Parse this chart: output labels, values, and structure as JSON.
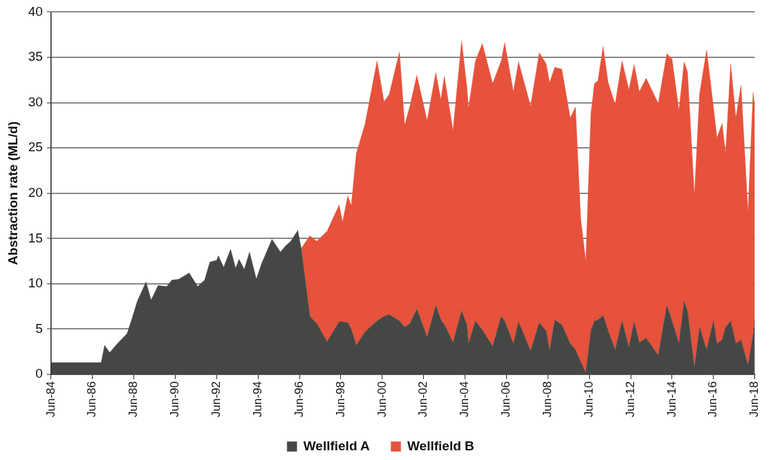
{
  "chart_data": {
    "type": "area",
    "stacked": true,
    "ylabel": "Abstraction rate (ML/d)",
    "x": [
      "1984-06",
      "1986-11",
      "1987-01",
      "1987-04",
      "1987-08",
      "1988-02",
      "1988-05",
      "1988-08",
      "1989-01",
      "1989-04",
      "1989-08",
      "1990-01",
      "1990-04",
      "1990-08",
      "1991-02",
      "1991-07",
      "1991-11",
      "1992-02",
      "1992-06",
      "1992-07",
      "1992-10",
      "1993-02",
      "1993-05",
      "1993-07",
      "1993-10",
      "1994-01",
      "1994-05",
      "1994-08",
      "1995-02",
      "1995-07",
      "1995-10",
      "1996-01",
      "1996-05",
      "1996-07",
      "1996-12",
      "1997-04",
      "1997-10",
      "1998-05",
      "1998-07",
      "1998-10",
      "1998-12",
      "1999-03",
      "1999-08",
      "2000-03",
      "2000-07",
      "2000-10",
      "2001-04",
      "2001-07",
      "2001-10",
      "2002-02",
      "2002-08",
      "2003-01",
      "2003-04",
      "2003-06",
      "2003-11",
      "2004-04",
      "2004-07",
      "2004-08",
      "2004-12",
      "2005-04",
      "2005-10",
      "2006-03",
      "2006-05",
      "2006-10",
      "2007-01",
      "2007-08",
      "2008-01",
      "2008-05",
      "2008-07",
      "2008-10",
      "2009-02",
      "2009-07",
      "2009-10",
      "2010-01",
      "2010-04",
      "2010-07",
      "2010-09",
      "2010-11",
      "2011-02",
      "2011-05",
      "2011-09",
      "2012-01",
      "2012-05",
      "2012-08",
      "2012-11",
      "2013-03",
      "2013-10",
      "2014-03",
      "2014-06",
      "2014-10",
      "2015-01",
      "2015-03",
      "2015-07",
      "2015-10",
      "2016-02",
      "2016-06",
      "2016-08",
      "2016-11",
      "2017-01",
      "2017-04",
      "2017-07",
      "2017-10",
      "2018-02",
      "2018-05",
      "2018-06"
    ],
    "series": [
      {
        "name": "Wellfield A",
        "color": "#454745",
        "values": [
          1.3,
          1.3,
          3.2,
          2.4,
          3.3,
          4.5,
          6.2,
          8.1,
          10.2,
          8.2,
          9.8,
          9.7,
          10.4,
          10.5,
          11.2,
          9.7,
          10.4,
          12.4,
          12.6,
          13.1,
          11.8,
          13.8,
          11.7,
          12.7,
          11.6,
          13.5,
          10.5,
          12.2,
          14.9,
          13.5,
          14.2,
          14.7,
          15.9,
          13.9,
          6.4,
          5.6,
          3.6,
          5.8,
          5.8,
          5.7,
          5.0,
          3.2,
          4.7,
          5.9,
          6.4,
          6.6,
          5.9,
          5.2,
          5.6,
          7.2,
          4.1,
          7.6,
          6.0,
          5.5,
          3.5,
          7.0,
          5.5,
          3.4,
          5.9,
          4.9,
          3.1,
          6.4,
          5.9,
          3.4,
          5.8,
          2.6,
          5.7,
          4.8,
          2.6,
          6.0,
          5.5,
          3.4,
          2.7,
          1.4,
          0.2,
          4.8,
          5.9,
          6.0,
          6.5,
          4.8,
          2.7,
          5.9,
          3.0,
          5.8,
          3.5,
          4.0,
          2.1,
          7.6,
          5.9,
          3.4,
          8.1,
          7.0,
          0.7,
          5.2,
          2.7,
          5.9,
          3.4,
          3.8,
          5.2,
          5.9,
          3.4,
          3.8,
          1.0,
          4.3,
          6.1
        ]
      },
      {
        "name": "Wellfield B",
        "color": "#e6523b",
        "values": [
          null,
          null,
          null,
          null,
          null,
          null,
          null,
          null,
          null,
          null,
          null,
          null,
          null,
          null,
          null,
          null,
          null,
          null,
          null,
          null,
          null,
          null,
          null,
          null,
          null,
          null,
          null,
          null,
          null,
          null,
          null,
          null,
          null,
          0,
          8.9,
          9.1,
          12.2,
          12.9,
          11.0,
          14.0,
          13.6,
          21.2,
          22.9,
          28.7,
          23.7,
          24.3,
          29.7,
          22.3,
          24.0,
          25.8,
          23.9,
          25.7,
          24.3,
          27.4,
          23.4,
          29.8,
          26.3,
          26.0,
          28.7,
          31.6,
          29.0,
          28.2,
          30.7,
          27.8,
          28.7,
          27.0,
          29.8,
          29.5,
          29.6,
          27.9,
          28.2,
          24.9,
          26.8,
          15.8,
          12.3,
          24.0,
          26.2,
          26.4,
          29.7,
          27.4,
          27.1,
          28.7,
          28.4,
          28.4,
          27.7,
          28.7,
          27.8,
          27.8,
          28.9,
          25.7,
          26.4,
          26.4,
          19.0,
          25.8,
          33.1,
          23.6,
          22.7,
          23.9,
          19.2,
          28.4,
          24.9,
          28.1,
          16.8,
          26.8,
          23.5
        ]
      }
    ],
    "xlim": [
      "1984-06",
      "2018-06"
    ],
    "xticks": [
      {
        "value": "1984-06",
        "label": "Jun-84"
      },
      {
        "value": "1986-06",
        "label": "Jun-86"
      },
      {
        "value": "1988-06",
        "label": "Jun-88"
      },
      {
        "value": "1990-06",
        "label": "Jun-90"
      },
      {
        "value": "1992-06",
        "label": "Jun-92"
      },
      {
        "value": "1994-06",
        "label": "Jun-94"
      },
      {
        "value": "1996-06",
        "label": "Jun-96"
      },
      {
        "value": "1998-06",
        "label": "Jun-98"
      },
      {
        "value": "2000-06",
        "label": "Jun-00"
      },
      {
        "value": "2002-06",
        "label": "Jun-02"
      },
      {
        "value": "2004-06",
        "label": "Jun-04"
      },
      {
        "value": "2006-06",
        "label": "Jun-06"
      },
      {
        "value": "2008-06",
        "label": "Jun-08"
      },
      {
        "value": "2010-06",
        "label": "Jun-10"
      },
      {
        "value": "2012-06",
        "label": "Jun-12"
      },
      {
        "value": "2014-06",
        "label": "Jun-14"
      },
      {
        "value": "2016-06",
        "label": "Jun-16"
      },
      {
        "value": "2018-06",
        "label": "Jun-18"
      }
    ],
    "ylim": [
      0,
      40
    ],
    "yticks": [
      0,
      5,
      10,
      15,
      20,
      25,
      30,
      35,
      40
    ],
    "grid": "y",
    "legend": "bottom"
  }
}
